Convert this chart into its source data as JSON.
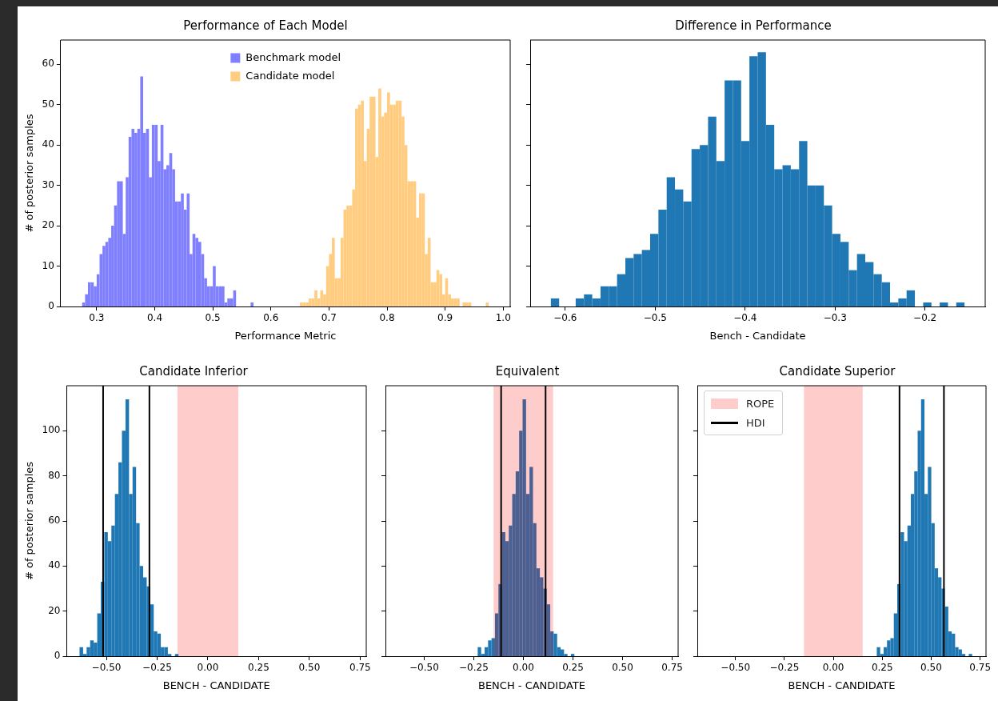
{
  "chart_data": [
    {
      "type": "histogram",
      "title": "Performance of Each Model",
      "xlabel": "Performance Metric",
      "ylabel": "# of posterior samples",
      "legend": "top",
      "series": [
        {
          "name": "Benchmark model",
          "color": "#8080ff",
          "values": [
            1,
            3,
            6,
            6,
            5,
            8,
            13,
            15,
            16,
            17,
            20,
            25,
            31,
            31,
            18,
            32,
            42,
            44,
            43,
            44,
            57,
            43,
            44,
            32,
            45,
            45,
            36,
            45,
            34,
            35,
            38,
            34,
            26,
            26,
            28,
            24,
            28,
            13,
            18,
            17,
            16,
            13,
            7,
            5,
            5,
            10,
            5,
            5,
            5,
            1,
            2,
            2,
            4,
            0,
            0,
            0,
            0,
            0,
            1,
            0,
            0,
            0,
            0,
            0,
            0,
            0,
            0,
            0,
            0,
            0,
            0,
            0,
            0,
            0,
            0,
            0,
            0,
            0,
            0,
            0,
            0,
            0,
            0,
            0,
            0,
            0,
            0,
            0,
            0,
            0,
            0,
            0,
            0,
            0,
            0,
            0,
            0,
            0,
            0,
            0,
            0,
            0,
            0,
            0,
            0,
            0,
            0,
            0,
            0,
            0,
            0,
            0,
            0,
            0,
            0,
            0,
            0,
            0,
            0,
            0,
            0,
            0,
            0,
            0,
            0,
            0,
            0,
            0,
            0,
            0,
            0,
            0,
            0,
            0,
            0,
            0,
            0,
            0,
            0,
            0
          ]
        },
        {
          "name": "Candidate model",
          "color": "#ffcc80",
          "values": [
            0,
            0,
            0,
            0,
            0,
            0,
            0,
            0,
            0,
            0,
            0,
            0,
            0,
            0,
            0,
            0,
            0,
            0,
            0,
            0,
            0,
            0,
            0,
            0,
            0,
            0,
            0,
            0,
            0,
            0,
            0,
            0,
            0,
            0,
            0,
            0,
            0,
            0,
            0,
            0,
            0,
            0,
            0,
            0,
            0,
            0,
            0,
            0,
            0,
            0,
            0,
            0,
            0,
            0,
            0,
            0,
            0,
            0,
            0,
            0,
            0,
            0,
            0,
            0,
            0,
            0,
            0,
            0,
            0,
            0,
            0,
            0,
            0,
            0,
            0,
            1,
            1,
            1,
            2,
            2,
            4,
            2,
            4,
            3,
            10,
            13,
            17,
            7,
            7,
            17,
            24,
            25,
            25,
            29,
            49,
            50,
            51,
            36,
            44,
            52,
            52,
            37,
            54,
            47,
            48,
            53,
            50,
            50,
            51,
            51,
            47,
            40,
            31,
            31,
            31,
            22,
            28,
            28,
            13,
            17,
            6,
            6,
            9,
            8,
            3,
            7,
            3,
            2,
            2,
            2,
            0,
            1,
            1,
            1,
            0,
            0,
            0,
            0,
            0,
            1
          ]
        }
      ],
      "bins": [
        0.275,
        0.28,
        0.285,
        0.29,
        0.295,
        0.3,
        0.305,
        0.31,
        0.315,
        0.32,
        0.325,
        0.33,
        0.335,
        0.34,
        0.345,
        0.35,
        0.355,
        0.36,
        0.365,
        0.37,
        0.375,
        0.38,
        0.385,
        0.39,
        0.395,
        0.4,
        0.405,
        0.41,
        0.415,
        0.42,
        0.425,
        0.43,
        0.435,
        0.44,
        0.445,
        0.45,
        0.455,
        0.46,
        0.465,
        0.47,
        0.475,
        0.48,
        0.485,
        0.49,
        0.495,
        0.5,
        0.505,
        0.51,
        0.515,
        0.52,
        0.525,
        0.53,
        0.535,
        0.54,
        0.545,
        0.55,
        0.555,
        0.56,
        0.565,
        0.57,
        0.575,
        0.58,
        0.585,
        0.59,
        0.595,
        0.6,
        0.605,
        0.61,
        0.615,
        0.62,
        0.625,
        0.63,
        0.635,
        0.64,
        0.645,
        0.65,
        0.655,
        0.66,
        0.665,
        0.67,
        0.675,
        0.68,
        0.685,
        0.69,
        0.695,
        0.7,
        0.705,
        0.71,
        0.715,
        0.72,
        0.725,
        0.73,
        0.735,
        0.74,
        0.745,
        0.75,
        0.755,
        0.76,
        0.765,
        0.77,
        0.775,
        0.78,
        0.785,
        0.79,
        0.795,
        0.8,
        0.805,
        0.81,
        0.815,
        0.82,
        0.825,
        0.83,
        0.835,
        0.84,
        0.845,
        0.85,
        0.855,
        0.86,
        0.865,
        0.87,
        0.875,
        0.88,
        0.885,
        0.89,
        0.895,
        0.9,
        0.905,
        0.91,
        0.915,
        0.92,
        0.925,
        0.93,
        0.935,
        0.94,
        0.945,
        0.95,
        0.955,
        0.96,
        0.965,
        0.97,
        0.975
      ],
      "xlim": [
        0.238,
        1.012
      ],
      "ylim": [
        0,
        66
      ],
      "xticks": [
        0.3,
        0.4,
        0.5,
        0.6,
        0.7,
        0.8,
        0.9,
        {
          "value": 1.0,
          "label": "1.0"
        }
      ],
      "yticks": [
        0,
        10,
        20,
        30,
        40,
        50,
        60
      ]
    },
    {
      "type": "histogram",
      "title": "Difference in Performance",
      "xlabel": "Bench - Candidate",
      "color": "#1f77b4",
      "tick_labels": "x",
      "bins": [
        -0.616,
        -0.6068,
        -0.5976,
        -0.5884,
        -0.5792,
        -0.57,
        -0.5608,
        -0.5516,
        -0.5424,
        -0.5332,
        -0.524,
        -0.5148,
        -0.5056,
        -0.4964,
        -0.4872,
        -0.478,
        -0.4688,
        -0.4596,
        -0.4504,
        -0.4412,
        -0.432,
        -0.4228,
        -0.4136,
        -0.4044,
        -0.3952,
        -0.386,
        -0.3768,
        -0.3676,
        -0.3584,
        -0.3492,
        -0.34,
        -0.3308,
        -0.3216,
        -0.3124,
        -0.3032,
        -0.294,
        -0.2848,
        -0.2756,
        -0.2664,
        -0.2572,
        -0.248,
        -0.2388,
        -0.2296,
        -0.2204,
        -0.2112,
        -0.202,
        -0.1928,
        -0.1836,
        -0.1744,
        -0.1652,
        -0.156
      ],
      "values": [
        2,
        0,
        0,
        2,
        3,
        2,
        5,
        5,
        8,
        12,
        13,
        14,
        18,
        24,
        32,
        29,
        26,
        39,
        40,
        47,
        36,
        56,
        56,
        41,
        62,
        63,
        45,
        34,
        35,
        34,
        41,
        30,
        30,
        25,
        18,
        16,
        9,
        13,
        11,
        8,
        6,
        1,
        2,
        4,
        0,
        1,
        0,
        1,
        0,
        1
      ],
      "xlim": [
        -0.639,
        -0.133
      ],
      "ylim": [
        0,
        66
      ],
      "xticks": [
        {
          "value": -0.6,
          "label": "−0.6"
        },
        {
          "value": -0.5,
          "label": "−0.5"
        },
        {
          "value": -0.4,
          "label": "−0.4"
        },
        {
          "value": -0.3,
          "label": "−0.3"
        },
        {
          "value": -0.2,
          "label": "−0.2"
        }
      ],
      "yticks": [
        0,
        10,
        20,
        30,
        40,
        50,
        60
      ]
    },
    {
      "type": "histogram",
      "title": "Candidate Inferior",
      "xlabel": "BENCH - CANDIDATE",
      "ylabel": "# of posterior samples",
      "color": "#1f77b4",
      "bins": [
        -0.632,
        -0.6146,
        -0.5972,
        -0.5798,
        -0.5624,
        -0.545,
        -0.5276,
        -0.5102,
        -0.4928,
        -0.4754,
        -0.458,
        -0.4406,
        -0.4232,
        -0.4058,
        -0.3884,
        -0.371,
        -0.3536,
        -0.3362,
        -0.3188,
        -0.3014,
        -0.284,
        -0.2666,
        -0.2492,
        -0.2318,
        -0.2144,
        -0.197,
        -0.1796,
        -0.1622,
        -0.1448
      ],
      "values": [
        4,
        1,
        4,
        7,
        6,
        19,
        33,
        55,
        51,
        58,
        72,
        86,
        100,
        114,
        72,
        84,
        59,
        40,
        35,
        31,
        23,
        11,
        10,
        4,
        4,
        1,
        0,
        1
      ],
      "xlim": [
        -0.695,
        0.78
      ],
      "ylim": [
        0,
        120
      ],
      "xticks": [
        {
          "value": -0.5,
          "label": "−0.50"
        },
        {
          "value": -0.25,
          "label": "−0.25"
        },
        {
          "value": 0,
          "label": "0.00"
        },
        {
          "value": 0.25,
          "label": "0.25"
        },
        {
          "value": 0.5,
          "label": "0.50"
        },
        {
          "value": 0.75,
          "label": "0.75"
        }
      ],
      "yticks": [
        0,
        20,
        40,
        60,
        80,
        100
      ],
      "bands": [
        {
          "axis": "x",
          "from": -0.15,
          "to": 0.15,
          "color": "#ffcccc"
        }
      ],
      "ref_lines": [
        {
          "axis": "x",
          "value": -0.516,
          "color": "#000000"
        },
        {
          "axis": "x",
          "value": -0.288,
          "color": "#000000"
        }
      ]
    },
    {
      "type": "histogram",
      "title": "Equivalent",
      "xlabel": "BENCH - CANDIDATE",
      "color": "#1f77b4",
      "tick_labels": "x",
      "bins": [
        -0.23,
        -0.2126,
        -0.1952,
        -0.1778,
        -0.1604,
        -0.143,
        -0.1256,
        -0.1082,
        -0.0908,
        -0.0734,
        -0.056,
        -0.0386,
        -0.0212,
        -0.0038,
        0.0136,
        0.031,
        0.0484,
        0.0658,
        0.0832,
        0.1006,
        0.118,
        0.1354,
        0.1528,
        0.1702,
        0.1876,
        0.205,
        0.2224,
        0.2398,
        0.2572
      ],
      "values": [
        4,
        1,
        4,
        7,
        8,
        19,
        32,
        55,
        51,
        58,
        72,
        82,
        100,
        114,
        72,
        84,
        59,
        39,
        35,
        30,
        23,
        11,
        10,
        4,
        3,
        1,
        0,
        1
      ],
      "xlim": [
        -0.695,
        0.78
      ],
      "ylim": [
        0,
        120
      ],
      "xticks": [
        {
          "value": -0.5,
          "label": "−0.50"
        },
        {
          "value": -0.25,
          "label": "−0.25"
        },
        {
          "value": 0,
          "label": "0.00"
        },
        {
          "value": 0.25,
          "label": "0.25"
        },
        {
          "value": 0.5,
          "label": "0.50"
        },
        {
          "value": 0.75,
          "label": "0.75"
        }
      ],
      "yticks": [
        0,
        20,
        40,
        60,
        80,
        100
      ],
      "bands": [
        {
          "axis": "x",
          "from": -0.15,
          "to": 0.15,
          "color": "#ffcccc"
        }
      ],
      "ref_lines": [
        {
          "axis": "x",
          "value": -0.112,
          "color": "#000000"
        },
        {
          "axis": "x",
          "value": 0.112,
          "color": "#000000"
        }
      ]
    },
    {
      "type": "histogram",
      "title": "Candidate Superior",
      "xlabel": "BENCH - CANDIDATE",
      "color": "#1f77b4",
      "tick_labels": "x",
      "legend": "top left",
      "bins": [
        0.222,
        0.2394,
        0.2568,
        0.2742,
        0.2916,
        0.309,
        0.3264,
        0.3438,
        0.3612,
        0.3786,
        0.396,
        0.4134,
        0.4308,
        0.4482,
        0.4656,
        0.483,
        0.5004,
        0.5178,
        0.5352,
        0.5526,
        0.57,
        0.5874,
        0.6048,
        0.6222,
        0.6396,
        0.657,
        0.6744,
        0.6918,
        0.7092
      ],
      "values": [
        4,
        1,
        4,
        7,
        8,
        19,
        32,
        55,
        51,
        58,
        72,
        82,
        100,
        114,
        72,
        84,
        59,
        39,
        35,
        30,
        22,
        11,
        10,
        4,
        3,
        1,
        0,
        1
      ],
      "xlim": [
        -0.695,
        0.78
      ],
      "ylim": [
        0,
        120
      ],
      "xticks": [
        {
          "value": -0.5,
          "label": "−0.50"
        },
        {
          "value": -0.25,
          "label": "−0.25"
        },
        {
          "value": 0,
          "label": "0.00"
        },
        {
          "value": 0.25,
          "label": "0.25"
        },
        {
          "value": 0.5,
          "label": "0.50"
        },
        {
          "value": 0.75,
          "label": "0.75"
        }
      ],
      "yticks": [
        0,
        20,
        40,
        60,
        80,
        100
      ],
      "bands": [
        {
          "axis": "x",
          "from": -0.15,
          "to": 0.15,
          "color": "#ffcccc",
          "label": "ROPE"
        }
      ],
      "ref_lines": [
        {
          "axis": "x",
          "value": 0.338,
          "color": "#000000",
          "label": "HDI"
        },
        {
          "axis": "x",
          "value": 0.565,
          "color": "#000000"
        }
      ]
    }
  ]
}
